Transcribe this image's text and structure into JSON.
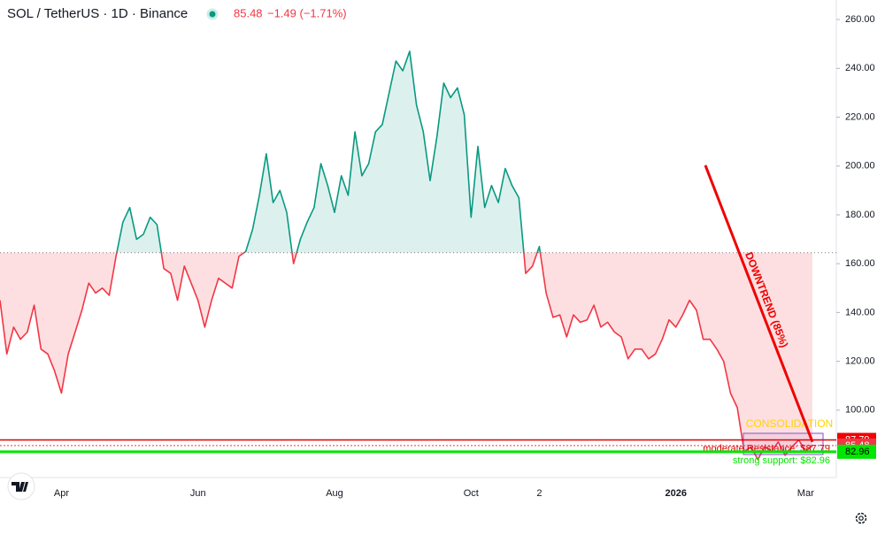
{
  "chart_data": {
    "type": "baseline",
    "title": "SOL / TetherUS · 1D · Binance",
    "last_price": "85.48",
    "change": "−1.49 (−1.71%)",
    "categories": [
      null,
      null,
      null,
      null,
      null,
      null,
      null,
      null,
      null,
      "Apr",
      null,
      null,
      null,
      null,
      null,
      null,
      null,
      null,
      null,
      null,
      null,
      null,
      null,
      null,
      null,
      null,
      null,
      null,
      null,
      "Jun",
      null,
      null,
      null,
      null,
      null,
      null,
      null,
      null,
      null,
      null,
      null,
      null,
      null,
      null,
      null,
      null,
      null,
      null,
      null,
      "Aug",
      null,
      null,
      null,
      null,
      null,
      null,
      null,
      null,
      null,
      null,
      null,
      null,
      null,
      null,
      null,
      null,
      null,
      null,
      null,
      "Oct",
      null,
      null,
      null,
      null,
      null,
      null,
      null,
      null,
      null,
      "2",
      null,
      null,
      null,
      null,
      null,
      null,
      null,
      null,
      null,
      null,
      null,
      null,
      null,
      null,
      null,
      null,
      null,
      null,
      null,
      "2026",
      null,
      null,
      null,
      null,
      null,
      null,
      null,
      null,
      null,
      null,
      null,
      null,
      null,
      null,
      null,
      null,
      null,
      null,
      "Mar",
      null
    ],
    "values": [
      145,
      123,
      134,
      129,
      132,
      143,
      125,
      123,
      116,
      107,
      123,
      132,
      141,
      152,
      148,
      150,
      147,
      163,
      177,
      183,
      170,
      172,
      179,
      176,
      158,
      156,
      145,
      159,
      152,
      145,
      134,
      145,
      154,
      152,
      150,
      163,
      165,
      174,
      188,
      205,
      185,
      190,
      181,
      160,
      170,
      177,
      183,
      201,
      192,
      181,
      196,
      188,
      214,
      196,
      201,
      214,
      217,
      230,
      243,
      239,
      247,
      225,
      214,
      194,
      212,
      234,
      228,
      232,
      221,
      179,
      208,
      183,
      192,
      185,
      199,
      192,
      187,
      156,
      159,
      167,
      148,
      138,
      139,
      130,
      139,
      136,
      137,
      143,
      134,
      136,
      132,
      130,
      121,
      125,
      125,
      121,
      123,
      129,
      137,
      134,
      139,
      145,
      141,
      129,
      129,
      125,
      120,
      107,
      101,
      83,
      85,
      79.7,
      85,
      83,
      87,
      81.5,
      85,
      87.8,
      83,
      85.48
    ],
    "baseline": 164.5,
    "up_color": "#089981",
    "down_color": "#f23645",
    "ylim": [
      72.4,
      268
    ],
    "yticks": [
      {
        "value": 100,
        "label": "100.00"
      },
      {
        "value": 120,
        "label": "120.00"
      },
      {
        "value": 140,
        "label": "140.00"
      },
      {
        "value": 160,
        "label": "160.00"
      },
      {
        "value": 180,
        "label": "180.00"
      },
      {
        "value": 200,
        "label": "200.00"
      },
      {
        "value": 220,
        "label": "220.00"
      },
      {
        "value": 240,
        "label": "240.00"
      },
      {
        "value": 260,
        "label": "260.00"
      }
    ],
    "grid": false,
    "levels": [
      {
        "label": "moderate Resistance: $87.79",
        "value": 87.79,
        "color": "#e00000"
      },
      {
        "label": "strong support: $82.96",
        "value": 82.96,
        "color": "#00e600"
      }
    ],
    "price_tags": [
      87.79,
      85.48,
      82.96
    ],
    "price_tag_colors": [
      "#f00000",
      "#f23645",
      "#00e600"
    ],
    "trendline": {
      "label": "DOWNTREND (85%)",
      "start": 200.3,
      "end": 87,
      "color": "#f00000"
    },
    "annotation": {
      "text": "CONSOLIDATION",
      "color": "#ffd400"
    }
  }
}
